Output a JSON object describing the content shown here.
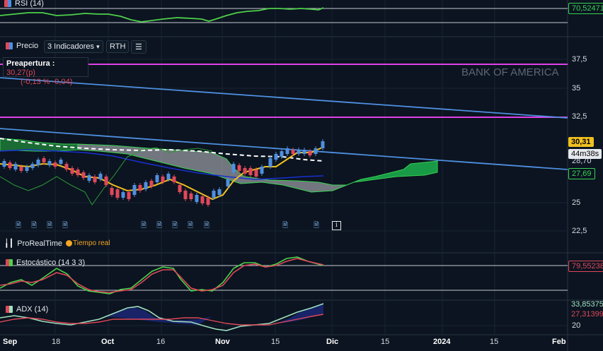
{
  "rsi": {
    "label": "RSI (14)",
    "value": "70,52471"
  },
  "price": {
    "label": "Precio",
    "indicators_label": "3 Indicadores",
    "rth_label": "RTH",
    "preopen_label": "Preapertura :",
    "preopen_value": "30,27(p)",
    "preopen_change": "(-0,13 % -0,04)",
    "watermark": "BANK OF AMERICA",
    "axis": [
      "37,5",
      "35",
      "32,5",
      "28,70",
      "25",
      "22,5"
    ],
    "last_price": "30,31",
    "timer": "44m38s",
    "level_green": "27,69",
    "realtime_source": "ProRealTime",
    "realtime_label": "Tiempo real"
  },
  "stochastic": {
    "label": "Estocástico (14 3 3)",
    "value": "79,55238"
  },
  "adx": {
    "label": "ADX (14)",
    "value1": "33,85375",
    "value2": "27,31399",
    "axis_20": "20"
  },
  "xaxis": [
    "Sep",
    "18",
    "Oct",
    "16",
    "Nov",
    "15",
    "Dic",
    "15",
    "2024",
    "15",
    "Feb"
  ],
  "colors": {
    "background": "#0b1420",
    "magenta": "#e040e8",
    "blue_trend": "#4f8fe0",
    "green": "#39d353",
    "red": "#e0485a",
    "gold": "#f0c020"
  }
}
